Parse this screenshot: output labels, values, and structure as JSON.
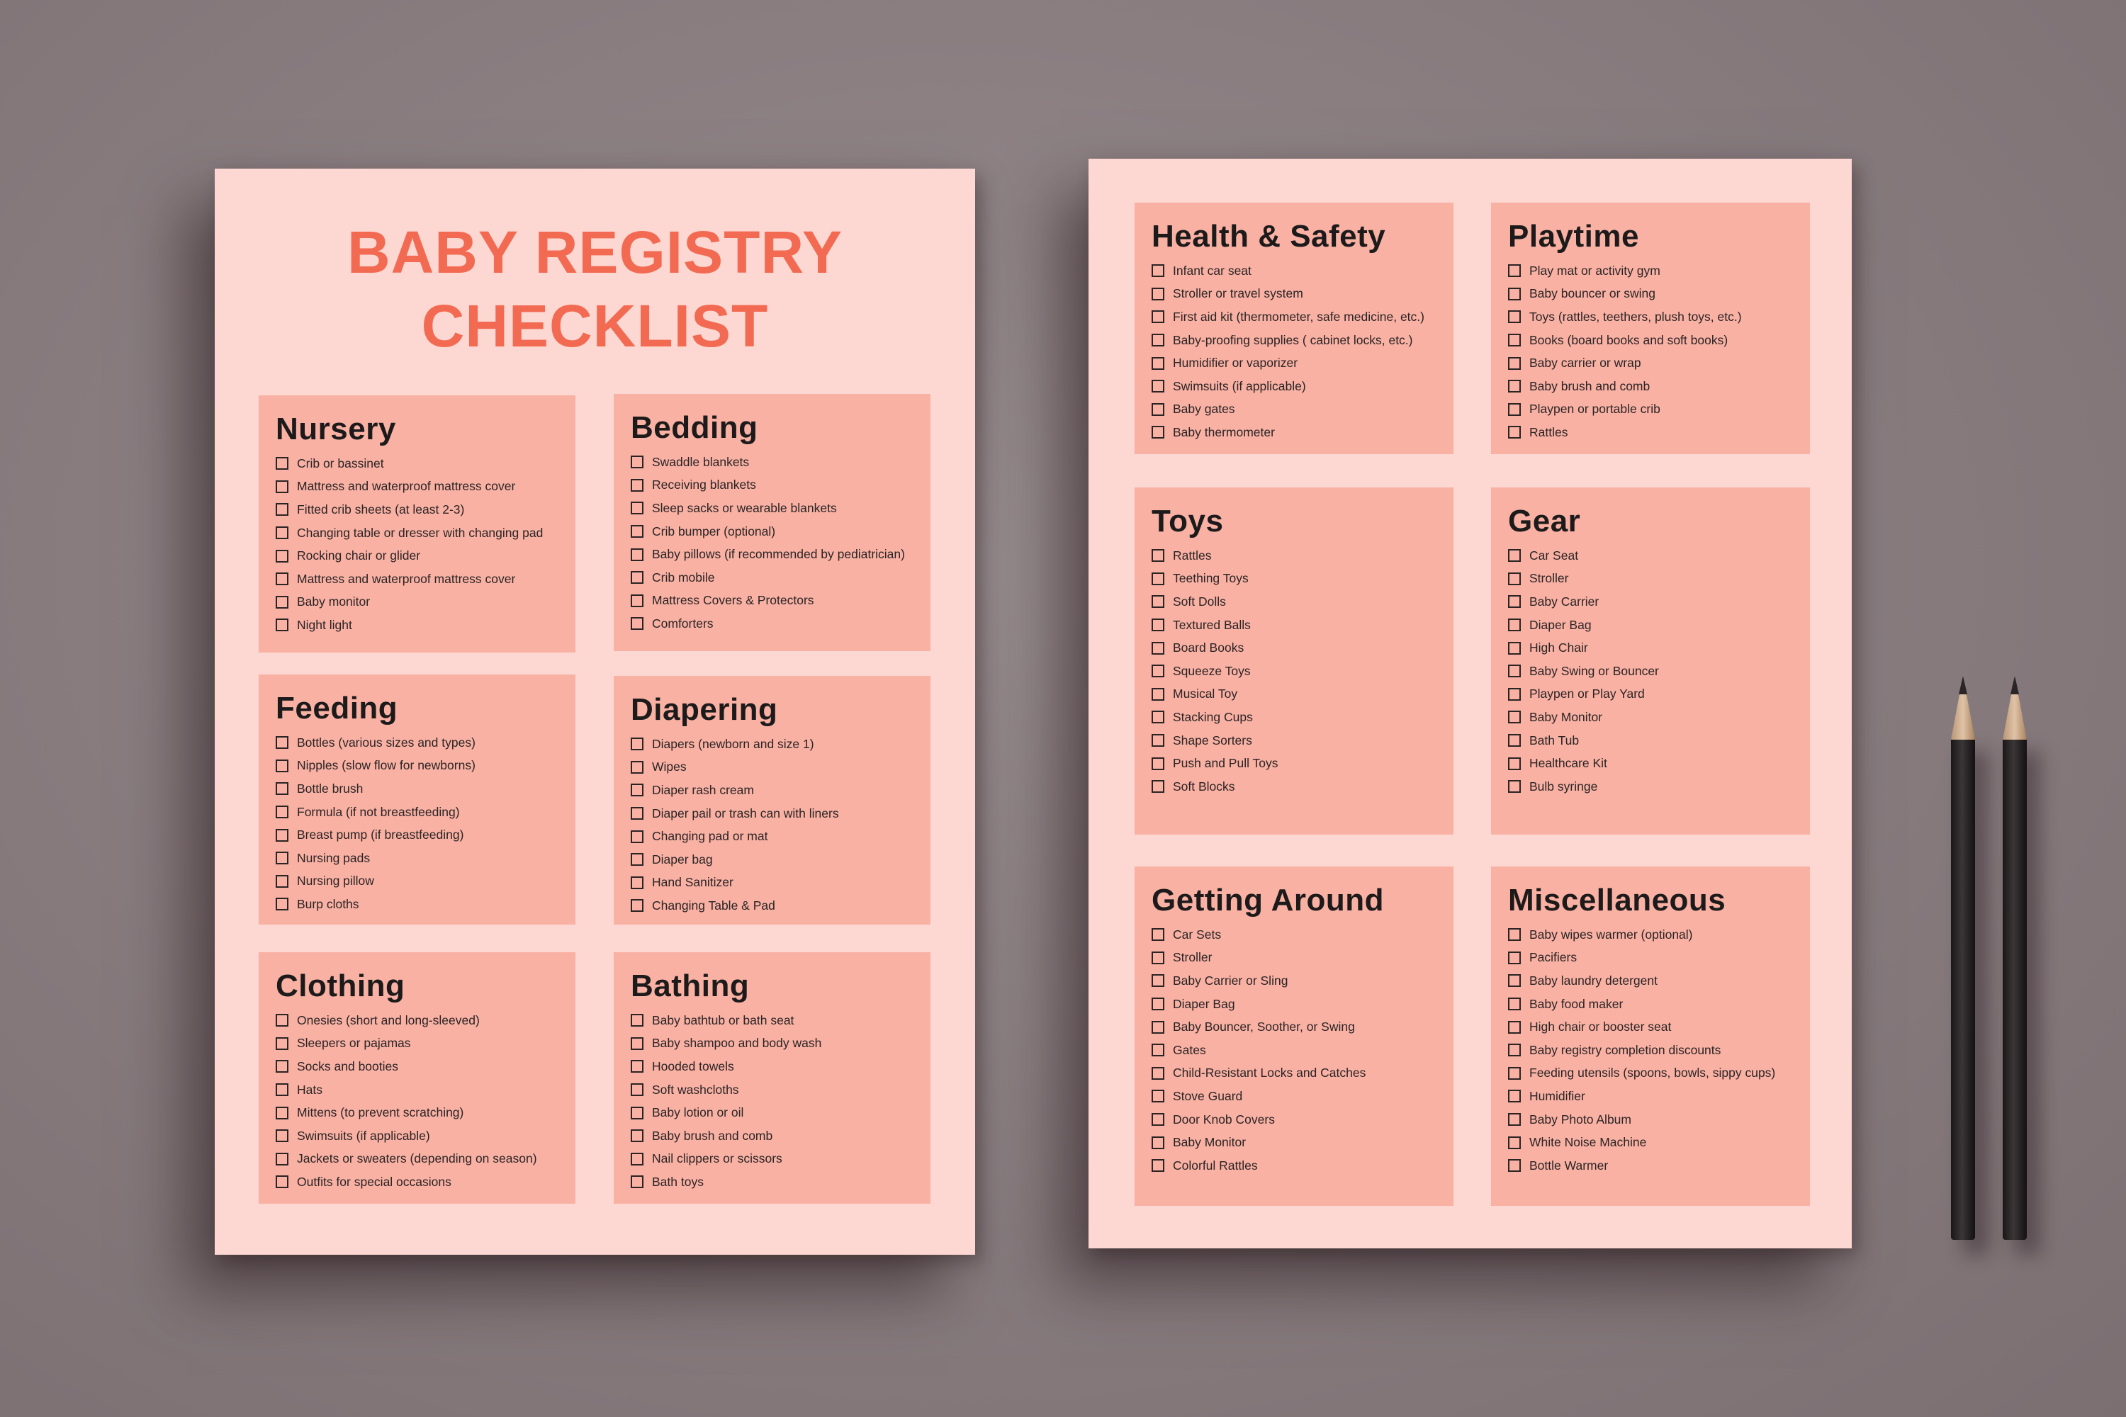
{
  "left_page": {
    "title_line1": "BABY REGISTRY",
    "title_line2": "CHECKLIST",
    "sections": [
      {
        "heading": "Nursery",
        "items": [
          "Crib or bassinet",
          "Mattress and waterproof mattress cover",
          "Fitted crib sheets (at least 2-3)",
          "Changing table or dresser with changing pad",
          "Rocking chair or glider",
          "Mattress and waterproof mattress cover",
          "Baby monitor",
          "Night light"
        ]
      },
      {
        "heading": "Bedding",
        "items": [
          "Swaddle blankets",
          "Receiving blankets",
          "Sleep sacks or wearable blankets",
          "Crib bumper (optional)",
          "Baby pillows (if recommended by pediatrician)",
          "Crib mobile",
          "Mattress Covers & Protectors",
          "Comforters"
        ]
      },
      {
        "heading": "Feeding",
        "items": [
          "Bottles (various sizes and types)",
          "Nipples (slow flow for newborns)",
          "Bottle brush",
          "Formula (if not breastfeeding)",
          "Breast pump (if breastfeeding)",
          "Nursing pads",
          "Nursing pillow",
          "Burp cloths"
        ]
      },
      {
        "heading": "Diapering",
        "items": [
          "Diapers (newborn and size 1)",
          "Wipes",
          "Diaper rash cream",
          "Diaper pail or trash can with liners",
          "Changing pad or mat",
          "Diaper bag",
          "Hand Sanitizer",
          "Changing Table & Pad"
        ]
      },
      {
        "heading": "Clothing",
        "items": [
          "Onesies (short and long-sleeved)",
          "Sleepers or pajamas",
          "Socks and booties",
          "Hats",
          "Mittens (to prevent scratching)",
          "Swimsuits (if applicable)",
          "Jackets or sweaters (depending on season)",
          "Outfits for special occasions"
        ]
      },
      {
        "heading": "Bathing",
        "items": [
          "Baby bathtub or bath seat",
          "Baby shampoo and body wash",
          "Hooded towels",
          "Soft washcloths",
          "Baby lotion or oil",
          "Baby brush and comb",
          "Nail clippers or scissors",
          "Bath toys"
        ]
      }
    ]
  },
  "right_page": {
    "sections": [
      {
        "heading": "Health & Safety",
        "items": [
          "Infant car seat",
          "Stroller or travel system",
          "First aid kit (thermometer, safe medicine, etc.)",
          "Baby-proofing supplies ( cabinet locks, etc.)",
          "Humidifier or vaporizer",
          "Swimsuits (if applicable)",
          "Baby gates",
          "Baby thermometer"
        ]
      },
      {
        "heading": "Playtime",
        "items": [
          "Play mat or activity gym",
          "Baby bouncer or swing",
          "Toys (rattles, teethers, plush toys, etc.)",
          "Books (board books and soft books)",
          "Baby carrier or wrap",
          "Baby brush and comb",
          "Playpen or portable crib",
          "Rattles"
        ]
      },
      {
        "heading": "Toys",
        "items": [
          "Rattles",
          "Teething Toys",
          "Soft Dolls",
          "Textured Balls",
          "Board Books",
          "Squeeze Toys",
          "Musical Toy",
          "Stacking Cups",
          "Shape Sorters",
          "Push and Pull Toys",
          "Soft Blocks"
        ]
      },
      {
        "heading": "Gear",
        "items": [
          "Car Seat",
          "Stroller",
          "Baby Carrier",
          "Diaper Bag",
          "High Chair",
          "Baby Swing or Bouncer",
          "Playpen or Play Yard",
          "Baby Monitor",
          "Bath Tub",
          "Healthcare Kit",
          "Bulb syringe"
        ]
      },
      {
        "heading": "Getting Around",
        "items": [
          "Car Sets",
          "Stroller",
          "Baby Carrier or Sling",
          "Diaper Bag",
          "Baby Bouncer, Soother, or Swing",
          "Gates",
          "Child-Resistant Locks and Catches",
          "Stove Guard",
          "Door Knob Covers",
          "Baby Monitor",
          "Colorful Rattles"
        ]
      },
      {
        "heading": "Miscellaneous",
        "items": [
          "Baby wipes warmer (optional)",
          "Pacifiers",
          "Baby laundry detergent",
          "Baby food maker",
          "High chair or booster seat",
          "Baby registry completion discounts",
          "Feeding utensils (spoons, bowls, sippy cups)",
          "Humidifier",
          "Baby Photo Album",
          "White Noise Machine",
          "Bottle Warmer"
        ]
      }
    ]
  },
  "colors": {
    "background": "#8a7e81",
    "paper": "#fdd7d1",
    "section_box": "#f9b1a4",
    "title": "#f26a52",
    "text": "#1c1a1a"
  },
  "icons": [
    "checkbox-icon",
    "pencil-icon"
  ]
}
